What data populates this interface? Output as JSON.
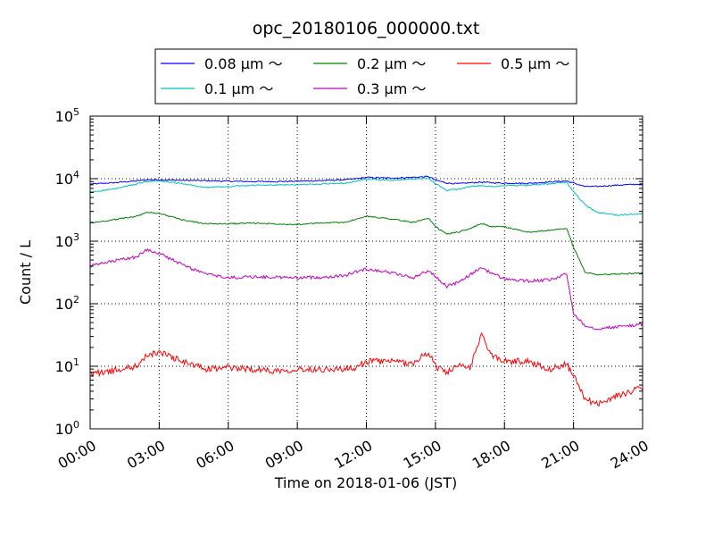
{
  "chart_data": {
    "type": "line",
    "title": "opc_20180106_000000.txt",
    "xlabel": "Time on 2018-01-06 (JST)",
    "ylabel": "Count / L",
    "xlim": [
      0,
      24
    ],
    "ylim_log10": [
      0,
      5
    ],
    "yscale": "log",
    "grid": true,
    "legend_position": "top-center (outside, above plot)",
    "x_tick_labels": [
      "00:00",
      "03:00",
      "06:00",
      "09:00",
      "12:00",
      "15:00",
      "18:00",
      "21:00",
      "24:00"
    ],
    "x_ticks_hours": [
      0,
      3,
      6,
      9,
      12,
      15,
      18,
      21,
      24
    ],
    "y_ticks": [
      {
        "base": "10",
        "exp": "0"
      },
      {
        "base": "10",
        "exp": "1"
      },
      {
        "base": "10",
        "exp": "2"
      },
      {
        "base": "10",
        "exp": "3"
      },
      {
        "base": "10",
        "exp": "4"
      },
      {
        "base": "10",
        "exp": "5"
      }
    ],
    "x_hours": [
      0,
      1,
      2,
      2.5,
      3,
      4,
      5,
      6,
      7,
      8,
      9,
      10,
      11,
      11.5,
      12,
      13,
      14,
      14.7,
      15,
      15.5,
      16,
      16.5,
      17,
      17.5,
      18,
      19,
      20,
      20.7,
      21,
      21.5,
      22,
      23,
      24
    ],
    "series": [
      {
        "name": "0.08 µm ～",
        "color": "#0000ff",
        "values": [
          8200,
          8600,
          9200,
          9600,
          9600,
          9400,
          9300,
          9100,
          9000,
          9000,
          9100,
          9300,
          9600,
          9900,
          10500,
          10200,
          10500,
          10800,
          9500,
          8500,
          8300,
          8600,
          8800,
          8600,
          8500,
          8400,
          8900,
          9200,
          8500,
          7500,
          7500,
          7900,
          8200
        ]
      },
      {
        "name": "0.1 µm ～",
        "color": "#00bfbf",
        "values": [
          6100,
          6800,
          8200,
          9000,
          9200,
          8300,
          7200,
          7500,
          7800,
          7900,
          8000,
          8200,
          8500,
          9000,
          9800,
          9400,
          9800,
          10200,
          8300,
          6500,
          6800,
          7500,
          7700,
          7500,
          7800,
          7800,
          8300,
          8800,
          6200,
          3800,
          2900,
          2600,
          2800
        ]
      },
      {
        "name": "0.2 µm ～",
        "color": "#008000",
        "values": [
          1950,
          2200,
          2500,
          2900,
          2800,
          2200,
          1900,
          1900,
          1950,
          1900,
          1850,
          1950,
          2000,
          2200,
          2500,
          2300,
          2000,
          2300,
          1700,
          1300,
          1400,
          1600,
          1900,
          1700,
          1700,
          1400,
          1500,
          1600,
          800,
          320,
          290,
          300,
          310
        ]
      },
      {
        "name": "0.3 µm ～",
        "color": "#bf00bf",
        "values": [
          400,
          480,
          560,
          740,
          640,
          420,
          300,
          260,
          270,
          265,
          260,
          265,
          280,
          320,
          360,
          320,
          260,
          340,
          270,
          190,
          220,
          290,
          380,
          300,
          250,
          230,
          240,
          300,
          70,
          45,
          40,
          43,
          47
        ]
      },
      {
        "name": "0.5 µm ～",
        "color": "#ff0000",
        "values": [
          7.5,
          8.5,
          10,
          15,
          17,
          12,
          9,
          9.5,
          9,
          8.5,
          9,
          9,
          9,
          9,
          12,
          12,
          11,
          17,
          10,
          8,
          10,
          9.5,
          32,
          14,
          12,
          12,
          9,
          11,
          7,
          3,
          2.5,
          3.5,
          4.5
        ]
      }
    ]
  },
  "legend": {
    "entries": [
      {
        "label": "0.08 µm ～",
        "color": "#0000ff"
      },
      {
        "label": "0.1 µm ～",
        "color": "#00bfbf"
      },
      {
        "label": "0.2 µm ～",
        "color": "#008000"
      },
      {
        "label": "0.3 µm ～",
        "color": "#bf00bf"
      },
      {
        "label": "0.5 µm ～",
        "color": "#ff0000"
      }
    ]
  }
}
